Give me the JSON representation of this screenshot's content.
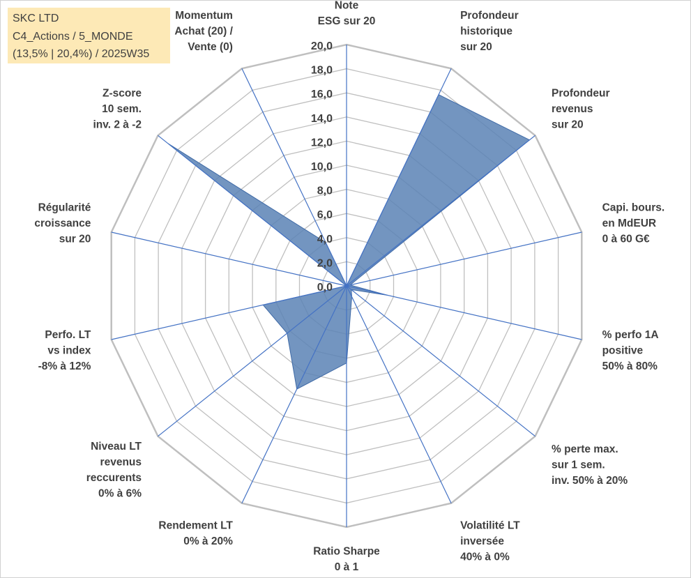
{
  "info_box": {
    "line1": "SKC LTD",
    "line2": "C4_Actions / 5_MONDE",
    "line3": "(13,5% | 20,4%) / 2025W35"
  },
  "chart_data": {
    "type": "radar",
    "title": "",
    "rlim": [
      0,
      20
    ],
    "r_step": 2,
    "tick_labels": [
      "0,0",
      "2,0",
      "4,0",
      "6,0",
      "8,0",
      "10,0",
      "12,0",
      "14,0",
      "16,0",
      "18,0",
      "20,0"
    ],
    "grid": true,
    "legend": "none",
    "fill_color": "#5b82b5",
    "axis_line_color": "#4472c4",
    "grid_color": "#bfbfbf",
    "categories": [
      [
        "Note",
        "ESG sur 20"
      ],
      [
        "Profondeur",
        "historique",
        "sur 20"
      ],
      [
        "Profondeur",
        "revenus",
        "sur 20"
      ],
      [
        "Capi. bours.",
        "en MdEUR",
        "0 à 60 G€"
      ],
      [
        "% perfo 1A",
        "positive",
        "50% à 80%"
      ],
      [
        "% perte max.",
        "sur 1 sem.",
        "inv. 50% à 20%"
      ],
      [
        "Volatilité LT",
        "inversée",
        "40% à 0%"
      ],
      [
        "Ratio Sharpe",
        "0 à 1"
      ],
      [
        "Rendement LT",
        "0% à 20%"
      ],
      [
        "Niveau LT",
        "revenus",
        "reccurents",
        "0% à 6%"
      ],
      [
        "Perfo. LT",
        "vs index",
        "-8% à 12%"
      ],
      [
        "Régularité",
        "croissance",
        "sur 20"
      ],
      [
        "Z-score",
        "10 sem.",
        "inv. 2 à -2"
      ],
      [
        "Momentum",
        "Achat (20) /",
        "Vente (0)"
      ]
    ],
    "series": [
      {
        "values": [
          0.0,
          17.6,
          19.4,
          0.3,
          3.5,
          0.5,
          1.0,
          6.4,
          9.5,
          6.3,
          7.1,
          0.0,
          18.9,
          4.0
        ]
      }
    ]
  }
}
